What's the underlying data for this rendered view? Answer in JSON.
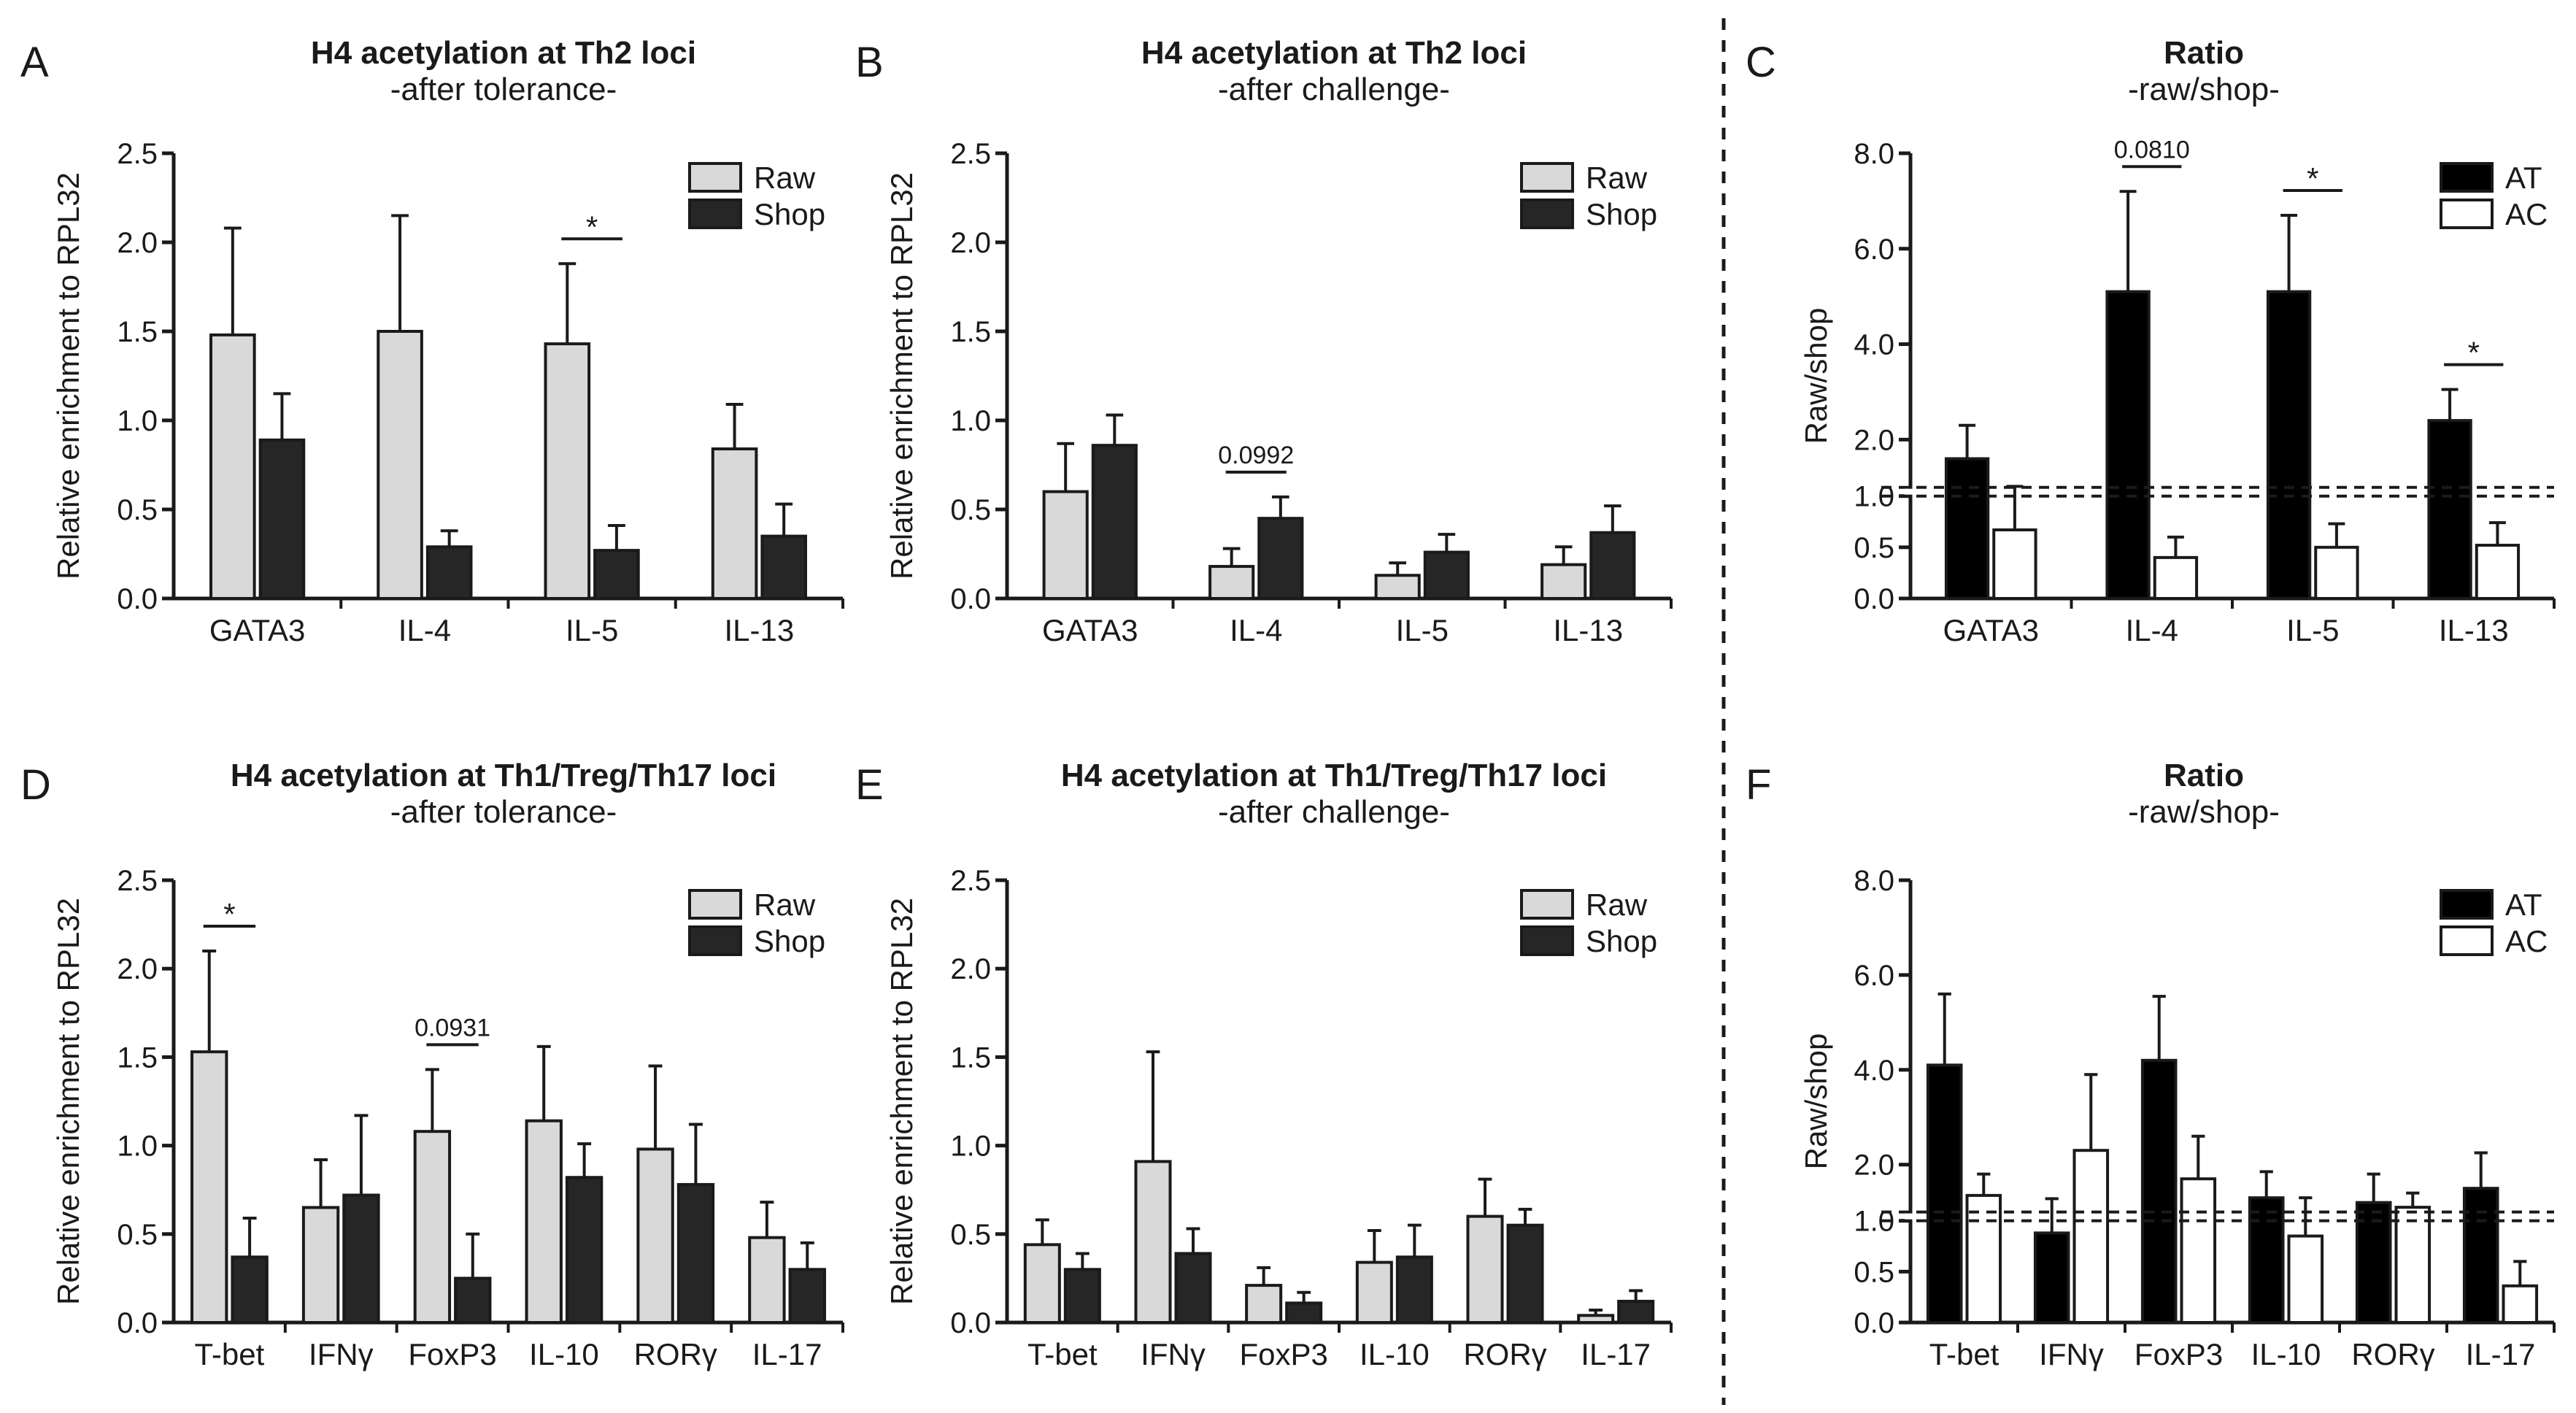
{
  "colors": {
    "raw": "#d9d9d9",
    "shop": "#262626",
    "at": "#000000",
    "ac": "#ffffff",
    "stroke": "#1a1a1a"
  },
  "chart_data": [
    {
      "panel": "A",
      "type": "bar",
      "kind": "enrichment",
      "title": "H4 acetylation at Th2 loci",
      "subtitle": "-after tolerance-",
      "ylabel": "Relative enrichment to RPL32",
      "ylim": [
        0,
        2.5
      ],
      "yticks": [
        "0.0",
        "0.5",
        "1.0",
        "1.5",
        "2.0",
        "2.5"
      ],
      "categories": [
        "GATA3",
        "IL-4",
        "IL-5",
        "IL-13"
      ],
      "series": [
        {
          "name": "Raw",
          "values": [
            1.48,
            1.5,
            1.43,
            0.84
          ],
          "errors": [
            0.6,
            0.65,
            0.45,
            0.25
          ]
        },
        {
          "name": "Shop",
          "values": [
            0.89,
            0.29,
            0.27,
            0.35
          ],
          "errors": [
            0.26,
            0.09,
            0.14,
            0.18
          ]
        }
      ],
      "annotations": [
        {
          "category": "IL-5",
          "text": "*"
        }
      ]
    },
    {
      "panel": "B",
      "type": "bar",
      "kind": "enrichment",
      "title": "H4 acetylation at Th2 loci",
      "subtitle": "-after challenge-",
      "ylabel": "Relative enrichment to RPL32",
      "ylim": [
        0,
        2.5
      ],
      "yticks": [
        "0.0",
        "0.5",
        "1.0",
        "1.5",
        "2.0",
        "2.5"
      ],
      "categories": [
        "GATA3",
        "IL-4",
        "IL-5",
        "IL-13"
      ],
      "series": [
        {
          "name": "Raw",
          "values": [
            0.6,
            0.18,
            0.13,
            0.19
          ],
          "errors": [
            0.27,
            0.1,
            0.07,
            0.1
          ]
        },
        {
          "name": "Shop",
          "values": [
            0.86,
            0.45,
            0.26,
            0.37
          ],
          "errors": [
            0.17,
            0.12,
            0.1,
            0.15
          ]
        }
      ],
      "annotations": [
        {
          "category": "IL-4",
          "text": "0.0992"
        }
      ]
    },
    {
      "panel": "C",
      "type": "bar",
      "kind": "ratio",
      "title": "Ratio",
      "subtitle": "-raw/shop-",
      "ylabel": "Raw/shop",
      "yticks_low": [
        "0.0",
        "0.5",
        "1.0"
      ],
      "yticks_high": [
        "2.0",
        "4.0",
        "6.0",
        "8.0"
      ],
      "categories": [
        "GATA3",
        "IL-4",
        "IL-5",
        "IL-13"
      ],
      "series": [
        {
          "name": "AT",
          "values": [
            1.6,
            5.1,
            5.1,
            2.4
          ],
          "errors": [
            0.7,
            2.1,
            1.6,
            0.65
          ]
        },
        {
          "name": "AC",
          "values": [
            0.67,
            0.4,
            0.5,
            0.52
          ],
          "errors": [
            0.35,
            0.2,
            0.23,
            0.22
          ]
        }
      ],
      "annotations": [
        {
          "category": "IL-4",
          "text": "0.0810"
        },
        {
          "category": "IL-5",
          "text": "*"
        },
        {
          "category": "IL-13",
          "text": "*"
        }
      ]
    },
    {
      "panel": "D",
      "type": "bar",
      "kind": "enrichment",
      "title": "H4 acetylation at Th1/Treg/Th17 loci",
      "subtitle": "-after tolerance-",
      "ylabel": "Relative enrichment to RPL32",
      "ylim": [
        0,
        2.5
      ],
      "yticks": [
        "0.0",
        "0.5",
        "1.0",
        "1.5",
        "2.0",
        "2.5"
      ],
      "categories": [
        "T-bet",
        "IFNγ",
        "FoxP3",
        "IL-10",
        "RORγ",
        "IL-17"
      ],
      "series": [
        {
          "name": "Raw",
          "values": [
            1.53,
            0.65,
            1.08,
            1.14,
            0.98,
            0.48
          ],
          "errors": [
            0.57,
            0.27,
            0.35,
            0.42,
            0.47,
            0.2
          ]
        },
        {
          "name": "Shop",
          "values": [
            0.37,
            0.72,
            0.25,
            0.82,
            0.78,
            0.3
          ],
          "errors": [
            0.22,
            0.45,
            0.25,
            0.19,
            0.34,
            0.15
          ]
        }
      ],
      "annotations": [
        {
          "category": "T-bet",
          "text": "*"
        },
        {
          "category": "FoxP3",
          "text": "0.0931"
        }
      ]
    },
    {
      "panel": "E",
      "type": "bar",
      "kind": "enrichment",
      "title": "H4 acetylation at Th1/Treg/Th17 loci",
      "subtitle": "-after challenge-",
      "ylabel": "Relative enrichment to RPL32",
      "ylim": [
        0,
        2.5
      ],
      "yticks": [
        "0.0",
        "0.5",
        "1.0",
        "1.5",
        "2.0",
        "2.5"
      ],
      "categories": [
        "T-bet",
        "IFNγ",
        "FoxP3",
        "IL-10",
        "RORγ",
        "IL-17"
      ],
      "series": [
        {
          "name": "Raw",
          "values": [
            0.44,
            0.91,
            0.21,
            0.34,
            0.6,
            0.04
          ],
          "errors": [
            0.14,
            0.62,
            0.1,
            0.18,
            0.21,
            0.03
          ]
        },
        {
          "name": "Shop",
          "values": [
            0.3,
            0.39,
            0.11,
            0.37,
            0.55,
            0.12
          ],
          "errors": [
            0.09,
            0.14,
            0.06,
            0.18,
            0.09,
            0.06
          ]
        }
      ],
      "annotations": []
    },
    {
      "panel": "F",
      "type": "bar",
      "kind": "ratio",
      "title": "Ratio",
      "subtitle": "-raw/shop-",
      "ylabel": "Raw/shop",
      "yticks_low": [
        "0.0",
        "0.5",
        "1.0"
      ],
      "yticks_high": [
        "2.0",
        "4.0",
        "6.0",
        "8.0"
      ],
      "categories": [
        "T-bet",
        "IFNγ",
        "FoxP3",
        "IL-10",
        "RORγ",
        "IL-17"
      ],
      "series": [
        {
          "name": "AT",
          "values": [
            4.1,
            0.88,
            4.2,
            1.3,
            1.2,
            1.5
          ],
          "errors": [
            1.5,
            0.4,
            1.35,
            0.55,
            0.6,
            0.75
          ]
        },
        {
          "name": "AC",
          "values": [
            1.35,
            2.3,
            1.7,
            0.85,
            1.1,
            0.36
          ],
          "errors": [
            0.45,
            1.6,
            0.9,
            0.45,
            0.3,
            0.24
          ]
        }
      ],
      "annotations": []
    }
  ]
}
